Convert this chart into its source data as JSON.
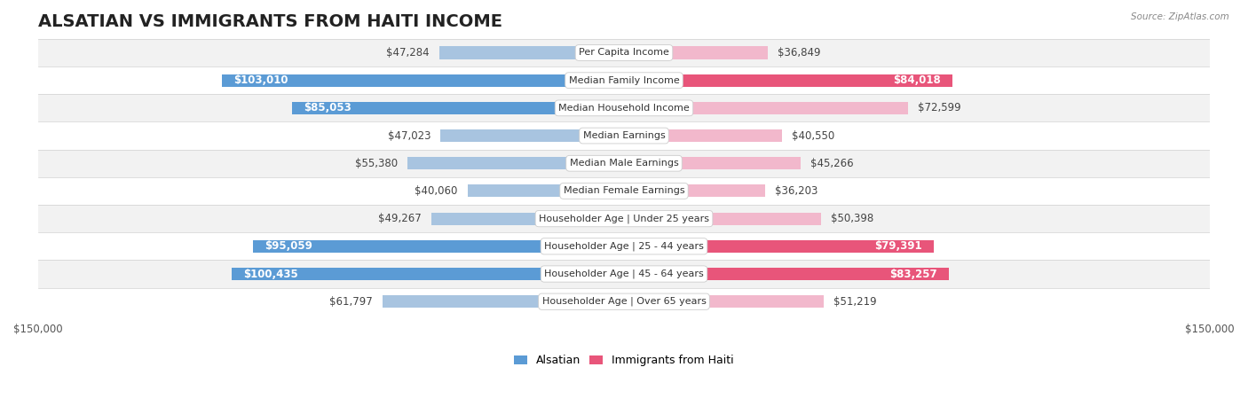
{
  "title": "ALSATIAN VS IMMIGRANTS FROM HAITI INCOME",
  "source": "Source: ZipAtlas.com",
  "categories": [
    "Per Capita Income",
    "Median Family Income",
    "Median Household Income",
    "Median Earnings",
    "Median Male Earnings",
    "Median Female Earnings",
    "Householder Age | Under 25 years",
    "Householder Age | 25 - 44 years",
    "Householder Age | 45 - 64 years",
    "Householder Age | Over 65 years"
  ],
  "alsatian_values": [
    47284,
    103010,
    85053,
    47023,
    55380,
    40060,
    49267,
    95059,
    100435,
    61797
  ],
  "haiti_values": [
    36849,
    84018,
    72599,
    40550,
    45266,
    36203,
    50398,
    79391,
    83257,
    51219
  ],
  "alsatian_labels": [
    "$47,284",
    "$103,010",
    "$85,053",
    "$47,023",
    "$55,380",
    "$40,060",
    "$49,267",
    "$95,059",
    "$100,435",
    "$61,797"
  ],
  "haiti_labels": [
    "$36,849",
    "$84,018",
    "$72,599",
    "$40,550",
    "$45,266",
    "$36,203",
    "$50,398",
    "$79,391",
    "$83,257",
    "$51,219"
  ],
  "alsatian_color_light": "#a8c4e0",
  "alsatian_color_dark": "#5b9bd5",
  "haiti_color_light": "#f2b8cc",
  "haiti_color_dark": "#e8557a",
  "max_value": 150000,
  "row_colors": [
    "#f2f2f2",
    "#ffffff"
  ],
  "title_fontsize": 14,
  "label_fontsize": 8.5,
  "category_fontsize": 8.0,
  "legend_fontsize": 9,
  "axis_label_fontsize": 8.5,
  "alsatian_dark_threshold": 85000,
  "haiti_dark_threshold": 79000,
  "bar_height": 0.45
}
